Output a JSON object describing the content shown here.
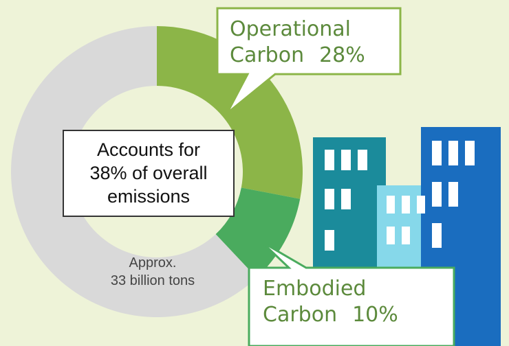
{
  "chart_data": {
    "type": "donut",
    "categories": [
      "Operational Carbon",
      "Embodied Carbon",
      null
    ],
    "values": [
      28,
      10,
      62
    ],
    "value_labels": [
      "28%",
      "10%",
      null
    ],
    "colors": [
      "#8cb548",
      "#4aab5e",
      "#d9d9d9"
    ],
    "center_label": [
      "Accounts for",
      "38% of overall",
      "emissions"
    ],
    "annotation": [
      "Approx.",
      "33 billion tons"
    ]
  }
}
